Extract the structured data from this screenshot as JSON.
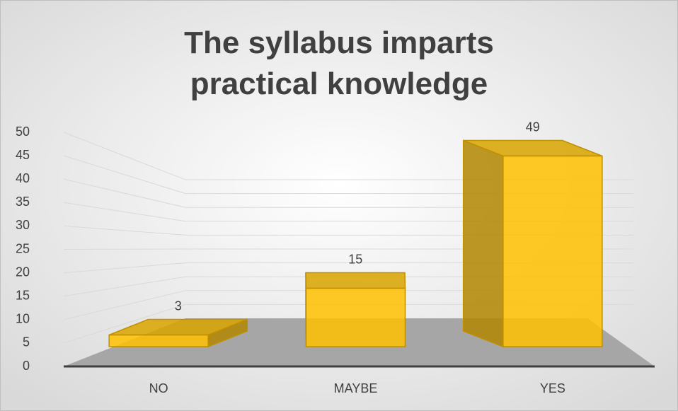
{
  "chart_data": {
    "type": "bar3d",
    "title": "The syllabus imparts practical knowledge",
    "categories": [
      "NO",
      "MAYBE",
      "YES"
    ],
    "values": [
      3,
      15,
      49
    ],
    "color": "#ffc000",
    "ylim": [
      0,
      50
    ],
    "yticks": [
      0,
      5,
      10,
      15,
      20,
      25,
      30,
      35,
      40,
      45,
      50
    ],
    "grid": true
  }
}
